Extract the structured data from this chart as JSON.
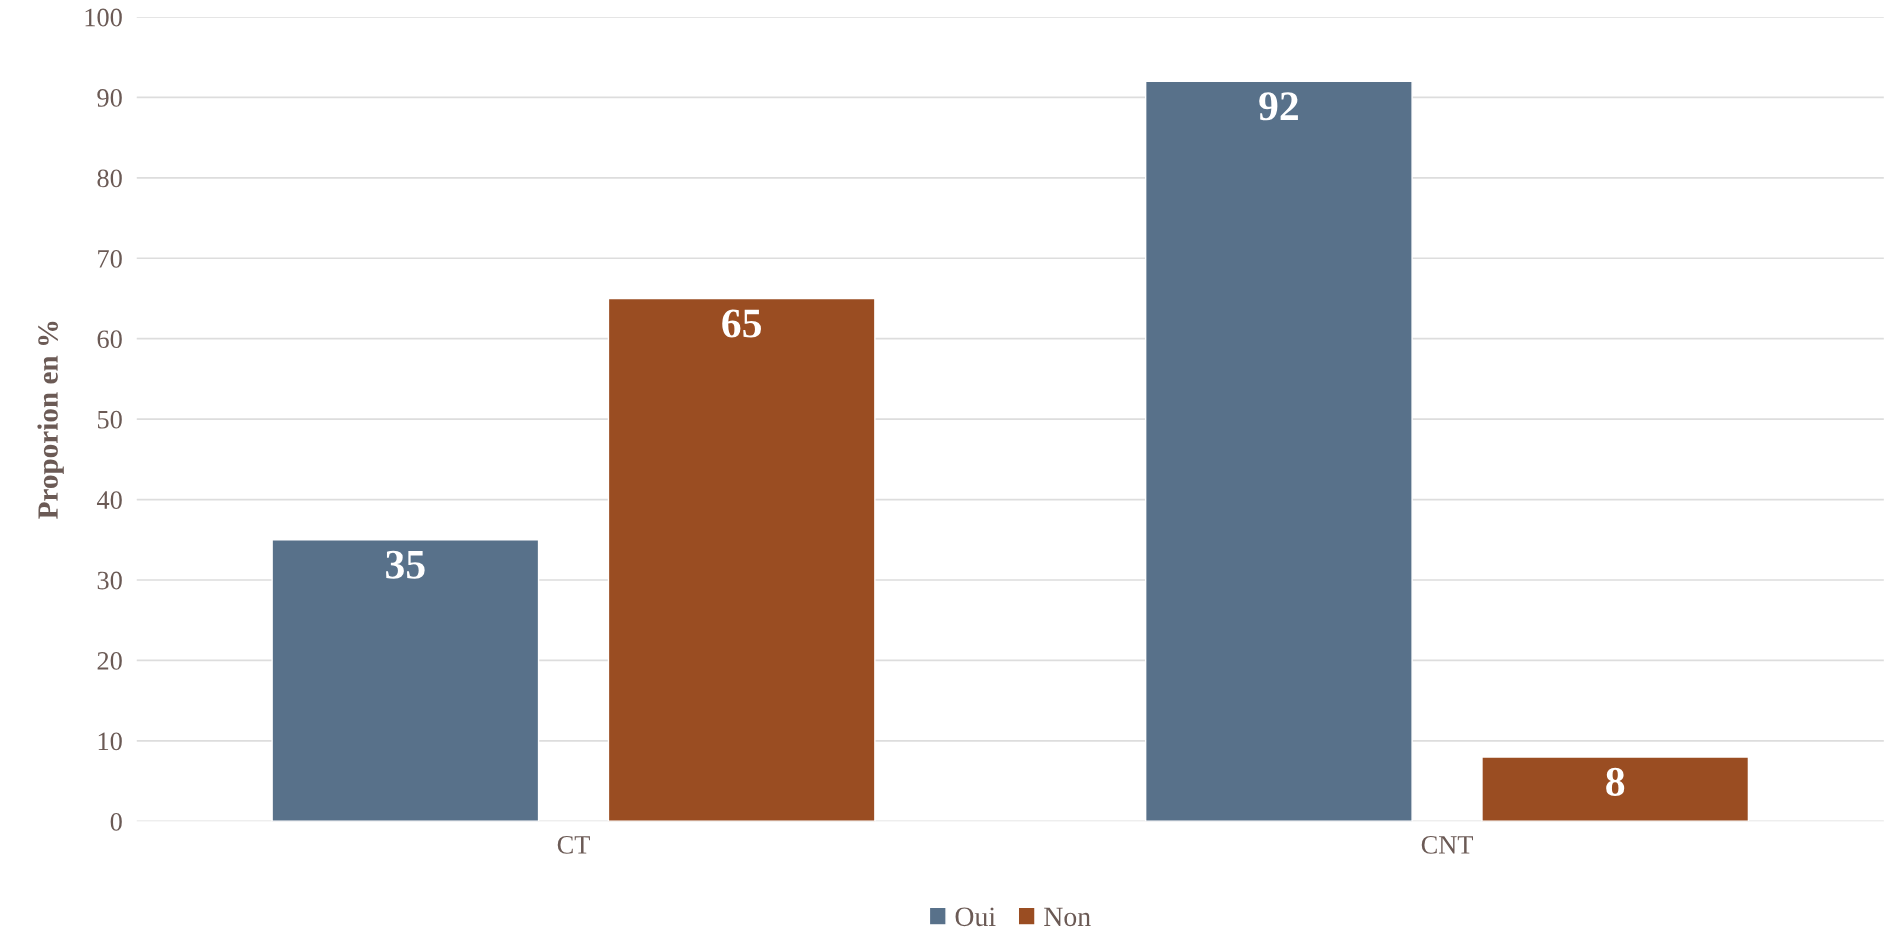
{
  "chart_data": {
    "type": "bar",
    "ylabel": "Proporion en %",
    "categories": [
      "CT",
      "CNT"
    ],
    "series": [
      {
        "name": "Oui",
        "color": "#58718a",
        "values": [
          35,
          92
        ]
      },
      {
        "name": "Non",
        "color": "#9a4d22",
        "values": [
          65,
          8
        ]
      }
    ],
    "ylim": [
      0,
      100
    ],
    "yticks": [
      0,
      10,
      20,
      30,
      40,
      50,
      60,
      70,
      80,
      90,
      100
    ],
    "grid": "y",
    "legend": "bottom",
    "data_labels": true
  }
}
